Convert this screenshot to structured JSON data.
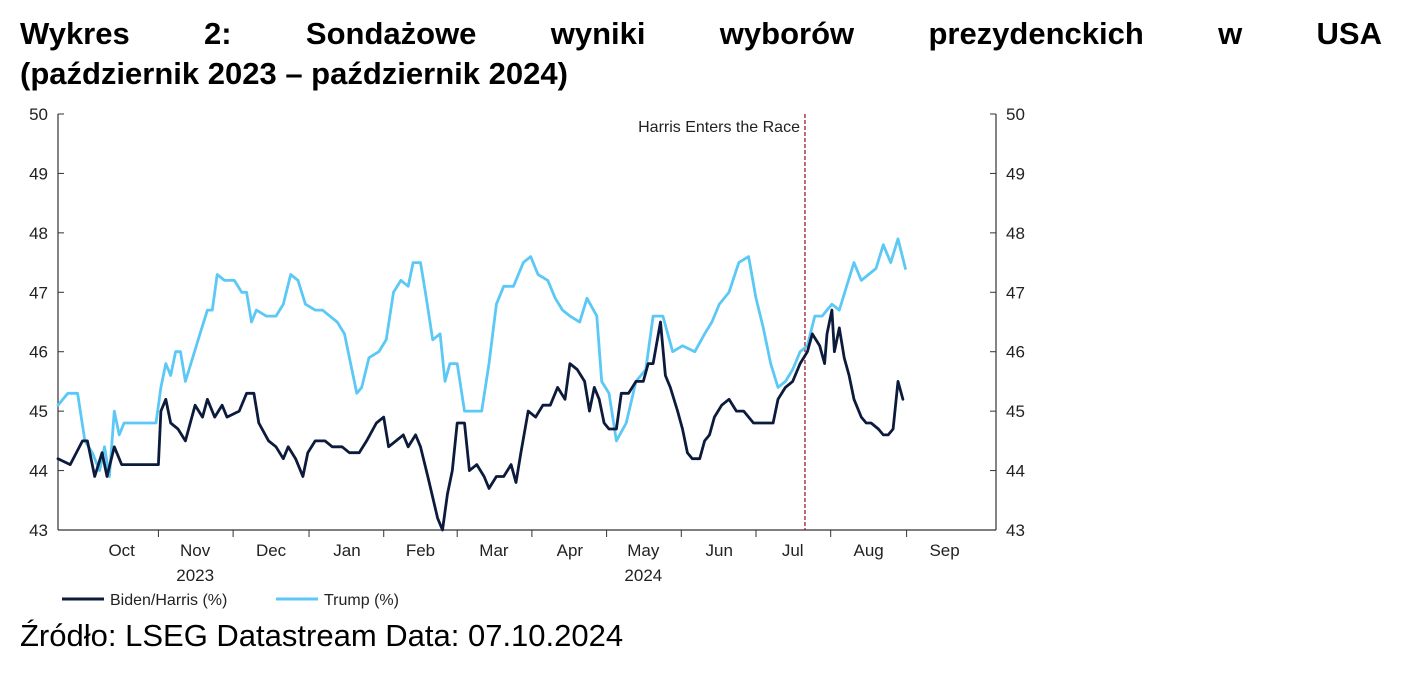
{
  "title_line1": "Wykres 2: Sondażowe wyniki wyborów prezydenckich w USA",
  "title_line2": "(październik 2023 – październik 2024)",
  "source": "Źródło: LSEG Datastream Data: 07.10.2024",
  "colors": {
    "biden": "#0c1a3c",
    "trump": "#5bc8f5",
    "vline": "#9b1c2c"
  },
  "chart_data": {
    "type": "line",
    "title": "",
    "xlabel": "",
    "ylabel": "",
    "ylim": [
      43,
      50
    ],
    "yticks": [
      "43",
      "44",
      "45",
      "46",
      "47",
      "48",
      "49",
      "50"
    ],
    "grid": false,
    "legend": "bottom-left",
    "x_domain": [
      "2023-09-20",
      "2024-10-07"
    ],
    "month_labels": [
      {
        "label": "Oct",
        "date": "2023-10-16"
      },
      {
        "label": "Nov",
        "date": "2023-11-15"
      },
      {
        "label": "Dec",
        "date": "2023-12-16"
      },
      {
        "label": "Jan",
        "date": "2024-01-16"
      },
      {
        "label": "Feb",
        "date": "2024-02-15"
      },
      {
        "label": "Mar",
        "date": "2024-03-16"
      },
      {
        "label": "Apr",
        "date": "2024-04-16"
      },
      {
        "label": "May",
        "date": "2024-05-16"
      },
      {
        "label": "Jun",
        "date": "2024-06-16"
      },
      {
        "label": "Jul",
        "date": "2024-07-16"
      },
      {
        "label": "Aug",
        "date": "2024-08-16"
      },
      {
        "label": "Sep",
        "date": "2024-09-16"
      }
    ],
    "year_labels": [
      {
        "label": "2023",
        "date": "2023-11-15"
      },
      {
        "label": "2024",
        "date": "2024-05-16"
      }
    ],
    "annotation": {
      "label": "Harris Enters the Race",
      "date": "2024-07-21"
    },
    "series": [
      {
        "name": "Biden/Harris (%)",
        "points": [
          [
            "2023-09-20",
            44.2
          ],
          [
            "2023-09-25",
            44.1
          ],
          [
            "2023-09-30",
            44.5
          ],
          [
            "2023-10-02",
            44.5
          ],
          [
            "2023-10-05",
            43.9
          ],
          [
            "2023-10-08",
            44.3
          ],
          [
            "2023-10-10",
            43.9
          ],
          [
            "2023-10-13",
            44.4
          ],
          [
            "2023-10-16",
            44.1
          ],
          [
            "2023-10-20",
            44.1
          ],
          [
            "2023-10-26",
            44.1
          ],
          [
            "2023-10-31",
            44.1
          ],
          [
            "2023-11-01",
            45.0
          ],
          [
            "2023-11-03",
            45.2
          ],
          [
            "2023-11-05",
            44.8
          ],
          [
            "2023-11-08",
            44.7
          ],
          [
            "2023-11-11",
            44.5
          ],
          [
            "2023-11-15",
            45.1
          ],
          [
            "2023-11-18",
            44.9
          ],
          [
            "2023-11-20",
            45.2
          ],
          [
            "2023-11-23",
            44.9
          ],
          [
            "2023-11-26",
            45.1
          ],
          [
            "2023-11-28",
            44.9
          ],
          [
            "2023-12-03",
            45.0
          ],
          [
            "2023-12-06",
            45.3
          ],
          [
            "2023-12-09",
            45.3
          ],
          [
            "2023-12-11",
            44.8
          ],
          [
            "2023-12-15",
            44.5
          ],
          [
            "2023-12-18",
            44.4
          ],
          [
            "2023-12-21",
            44.2
          ],
          [
            "2023-12-23",
            44.4
          ],
          [
            "2023-12-26",
            44.2
          ],
          [
            "2023-12-29",
            43.9
          ],
          [
            "2023-12-31",
            44.3
          ],
          [
            "2024-01-03",
            44.5
          ],
          [
            "2024-01-07",
            44.5
          ],
          [
            "2024-01-10",
            44.4
          ],
          [
            "2024-01-14",
            44.4
          ],
          [
            "2024-01-17",
            44.3
          ],
          [
            "2024-01-21",
            44.3
          ],
          [
            "2024-01-24",
            44.5
          ],
          [
            "2024-01-28",
            44.8
          ],
          [
            "2024-01-31",
            44.9
          ],
          [
            "2024-02-02",
            44.4
          ],
          [
            "2024-02-05",
            44.5
          ],
          [
            "2024-02-08",
            44.6
          ],
          [
            "2024-02-10",
            44.4
          ],
          [
            "2024-02-13",
            44.6
          ],
          [
            "2024-02-15",
            44.4
          ],
          [
            "2024-02-18",
            43.9
          ],
          [
            "2024-02-22",
            43.2
          ],
          [
            "2024-02-24",
            43.0
          ],
          [
            "2024-02-26",
            43.6
          ],
          [
            "2024-02-28",
            44.0
          ],
          [
            "2024-03-01",
            44.8
          ],
          [
            "2024-03-04",
            44.8
          ],
          [
            "2024-03-06",
            44.0
          ],
          [
            "2024-03-09",
            44.1
          ],
          [
            "2024-03-12",
            43.9
          ],
          [
            "2024-03-14",
            43.7
          ],
          [
            "2024-03-17",
            43.9
          ],
          [
            "2024-03-20",
            43.9
          ],
          [
            "2024-03-23",
            44.1
          ],
          [
            "2024-03-25",
            43.8
          ],
          [
            "2024-03-27",
            44.3
          ],
          [
            "2024-03-30",
            45.0
          ],
          [
            "2024-04-02",
            44.9
          ],
          [
            "2024-04-05",
            45.1
          ],
          [
            "2024-04-08",
            45.1
          ],
          [
            "2024-04-11",
            45.4
          ],
          [
            "2024-04-14",
            45.2
          ],
          [
            "2024-04-16",
            45.8
          ],
          [
            "2024-04-19",
            45.7
          ],
          [
            "2024-04-22",
            45.5
          ],
          [
            "2024-04-24",
            45.0
          ],
          [
            "2024-04-26",
            45.4
          ],
          [
            "2024-04-28",
            45.2
          ],
          [
            "2024-04-30",
            44.8
          ],
          [
            "2024-05-02",
            44.7
          ],
          [
            "2024-05-05",
            44.7
          ],
          [
            "2024-05-07",
            45.3
          ],
          [
            "2024-05-10",
            45.3
          ],
          [
            "2024-05-13",
            45.5
          ],
          [
            "2024-05-16",
            45.5
          ],
          [
            "2024-05-18",
            45.8
          ],
          [
            "2024-05-20",
            45.8
          ],
          [
            "2024-05-23",
            46.5
          ],
          [
            "2024-05-25",
            45.6
          ],
          [
            "2024-05-27",
            45.4
          ],
          [
            "2024-05-30",
            45.0
          ],
          [
            "2024-06-01",
            44.7
          ],
          [
            "2024-06-03",
            44.3
          ],
          [
            "2024-06-05",
            44.2
          ],
          [
            "2024-06-08",
            44.2
          ],
          [
            "2024-06-10",
            44.5
          ],
          [
            "2024-06-12",
            44.6
          ],
          [
            "2024-06-14",
            44.9
          ],
          [
            "2024-06-17",
            45.1
          ],
          [
            "2024-06-20",
            45.2
          ],
          [
            "2024-06-23",
            45.0
          ],
          [
            "2024-06-26",
            45.0
          ],
          [
            "2024-06-30",
            44.8
          ],
          [
            "2024-07-03",
            44.8
          ],
          [
            "2024-07-06",
            44.8
          ],
          [
            "2024-07-08",
            44.8
          ],
          [
            "2024-07-10",
            45.2
          ],
          [
            "2024-07-13",
            45.4
          ],
          [
            "2024-07-16",
            45.5
          ],
          [
            "2024-07-19",
            45.8
          ],
          [
            "2024-07-22",
            46.0
          ],
          [
            "2024-07-24",
            46.3
          ],
          [
            "2024-07-27",
            46.1
          ],
          [
            "2024-07-29",
            45.8
          ],
          [
            "2024-07-30",
            46.3
          ],
          [
            "2024-08-01",
            46.7
          ],
          [
            "2024-08-02",
            46.0
          ],
          [
            "2024-08-04",
            46.4
          ],
          [
            "2024-08-06",
            45.9
          ],
          [
            "2024-08-08",
            45.6
          ],
          [
            "2024-08-10",
            45.2
          ],
          [
            "2024-08-13",
            44.9
          ],
          [
            "2024-08-15",
            44.8
          ],
          [
            "2024-08-17",
            44.8
          ],
          [
            "2024-08-20",
            44.7
          ],
          [
            "2024-08-22",
            44.6
          ],
          [
            "2024-08-24",
            44.6
          ],
          [
            "2024-08-26",
            44.7
          ],
          [
            "2024-08-28",
            45.5
          ],
          [
            "2024-08-30",
            45.2
          ]
        ]
      },
      {
        "name": "Trump (%)",
        "points": [
          [
            "2023-09-20",
            45.1
          ],
          [
            "2023-09-24",
            45.3
          ],
          [
            "2023-09-28",
            45.3
          ],
          [
            "2023-10-01",
            44.5
          ],
          [
            "2023-10-04",
            44.3
          ],
          [
            "2023-10-07",
            44.0
          ],
          [
            "2023-10-09",
            44.4
          ],
          [
            "2023-10-11",
            43.9
          ],
          [
            "2023-10-13",
            45.0
          ],
          [
            "2023-10-15",
            44.6
          ],
          [
            "2023-10-17",
            44.8
          ],
          [
            "2023-10-20",
            44.8
          ],
          [
            "2023-10-25",
            44.8
          ],
          [
            "2023-10-30",
            44.8
          ],
          [
            "2023-11-01",
            45.4
          ],
          [
            "2023-11-03",
            45.8
          ],
          [
            "2023-11-05",
            45.6
          ],
          [
            "2023-11-07",
            46.0
          ],
          [
            "2023-11-09",
            46.0
          ],
          [
            "2023-11-11",
            45.5
          ],
          [
            "2023-11-14",
            45.9
          ],
          [
            "2023-11-17",
            46.3
          ],
          [
            "2023-11-20",
            46.7
          ],
          [
            "2023-11-22",
            46.7
          ],
          [
            "2023-11-24",
            47.3
          ],
          [
            "2023-11-27",
            47.2
          ],
          [
            "2023-12-01",
            47.2
          ],
          [
            "2023-12-04",
            47.0
          ],
          [
            "2023-12-06",
            47.0
          ],
          [
            "2023-12-08",
            46.5
          ],
          [
            "2023-12-10",
            46.7
          ],
          [
            "2023-12-14",
            46.6
          ],
          [
            "2023-12-18",
            46.6
          ],
          [
            "2023-12-21",
            46.8
          ],
          [
            "2023-12-24",
            47.3
          ],
          [
            "2023-12-27",
            47.2
          ],
          [
            "2023-12-30",
            46.8
          ],
          [
            "2024-01-03",
            46.7
          ],
          [
            "2024-01-06",
            46.7
          ],
          [
            "2024-01-09",
            46.6
          ],
          [
            "2024-01-12",
            46.5
          ],
          [
            "2024-01-15",
            46.3
          ],
          [
            "2024-01-17",
            45.9
          ],
          [
            "2024-01-20",
            45.3
          ],
          [
            "2024-01-22",
            45.4
          ],
          [
            "2024-01-25",
            45.9
          ],
          [
            "2024-01-29",
            46.0
          ],
          [
            "2024-02-01",
            46.2
          ],
          [
            "2024-02-04",
            47.0
          ],
          [
            "2024-02-07",
            47.2
          ],
          [
            "2024-02-10",
            47.1
          ],
          [
            "2024-02-12",
            47.5
          ],
          [
            "2024-02-15",
            47.5
          ],
          [
            "2024-02-17",
            47.0
          ],
          [
            "2024-02-20",
            46.2
          ],
          [
            "2024-02-23",
            46.3
          ],
          [
            "2024-02-25",
            45.5
          ],
          [
            "2024-02-27",
            45.8
          ],
          [
            "2024-03-01",
            45.8
          ],
          [
            "2024-03-04",
            45.0
          ],
          [
            "2024-03-08",
            45.0
          ],
          [
            "2024-03-11",
            45.0
          ],
          [
            "2024-03-14",
            45.8
          ],
          [
            "2024-03-17",
            46.8
          ],
          [
            "2024-03-20",
            47.1
          ],
          [
            "2024-03-24",
            47.1
          ],
          [
            "2024-03-28",
            47.5
          ],
          [
            "2024-03-31",
            47.6
          ],
          [
            "2024-04-03",
            47.3
          ],
          [
            "2024-04-07",
            47.2
          ],
          [
            "2024-04-10",
            46.9
          ],
          [
            "2024-04-13",
            46.7
          ],
          [
            "2024-04-16",
            46.6
          ],
          [
            "2024-04-20",
            46.5
          ],
          [
            "2024-04-23",
            46.9
          ],
          [
            "2024-04-27",
            46.6
          ],
          [
            "2024-04-29",
            45.5
          ],
          [
            "2024-05-02",
            45.3
          ],
          [
            "2024-05-05",
            44.5
          ],
          [
            "2024-05-09",
            44.8
          ],
          [
            "2024-05-13",
            45.5
          ],
          [
            "2024-05-17",
            45.7
          ],
          [
            "2024-05-20",
            46.6
          ],
          [
            "2024-05-24",
            46.6
          ],
          [
            "2024-05-28",
            46.0
          ],
          [
            "2024-06-01",
            46.1
          ],
          [
            "2024-06-06",
            46.0
          ],
          [
            "2024-06-10",
            46.3
          ],
          [
            "2024-06-13",
            46.5
          ],
          [
            "2024-06-16",
            46.8
          ],
          [
            "2024-06-20",
            47.0
          ],
          [
            "2024-06-24",
            47.5
          ],
          [
            "2024-06-28",
            47.6
          ],
          [
            "2024-07-01",
            46.9
          ],
          [
            "2024-07-04",
            46.4
          ],
          [
            "2024-07-07",
            45.8
          ],
          [
            "2024-07-10",
            45.4
          ],
          [
            "2024-07-13",
            45.5
          ],
          [
            "2024-07-16",
            45.7
          ],
          [
            "2024-07-19",
            46.0
          ],
          [
            "2024-07-22",
            46.1
          ],
          [
            "2024-07-25",
            46.6
          ],
          [
            "2024-07-28",
            46.6
          ],
          [
            "2024-08-01",
            46.8
          ],
          [
            "2024-08-04",
            46.7
          ],
          [
            "2024-08-07",
            47.1
          ],
          [
            "2024-08-10",
            47.5
          ],
          [
            "2024-08-13",
            47.2
          ],
          [
            "2024-08-16",
            47.3
          ],
          [
            "2024-08-19",
            47.4
          ],
          [
            "2024-08-22",
            47.8
          ],
          [
            "2024-08-25",
            47.5
          ],
          [
            "2024-08-28",
            47.9
          ],
          [
            "2024-08-31",
            47.4
          ]
        ]
      }
    ]
  }
}
